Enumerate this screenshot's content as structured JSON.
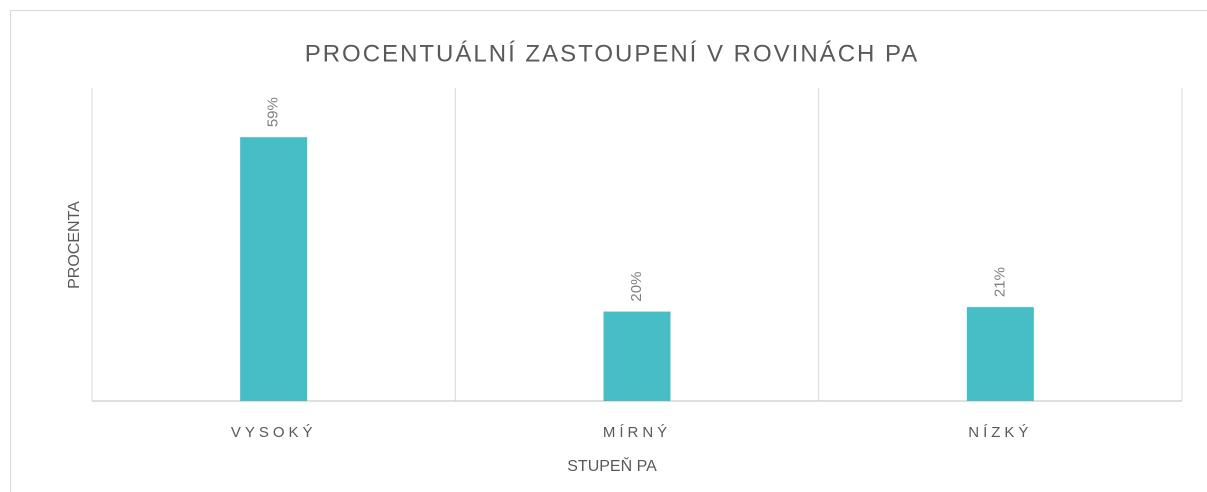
{
  "chart_data": {
    "type": "bar",
    "title": "PROCENTUÁLNÍ ZASTOUPENÍ V ROVINÁCH PA",
    "x_label": "STUPEŇ PA",
    "y_label": "PROCENTA",
    "categories": [
      "VYSOKÝ",
      "MÍRNÝ",
      "NÍZKÝ"
    ],
    "values": [
      59,
      20,
      21
    ],
    "value_labels": [
      "59%",
      "20%",
      "21%"
    ],
    "color": "#47bdc6",
    "ylim": [
      0,
      70
    ]
  }
}
